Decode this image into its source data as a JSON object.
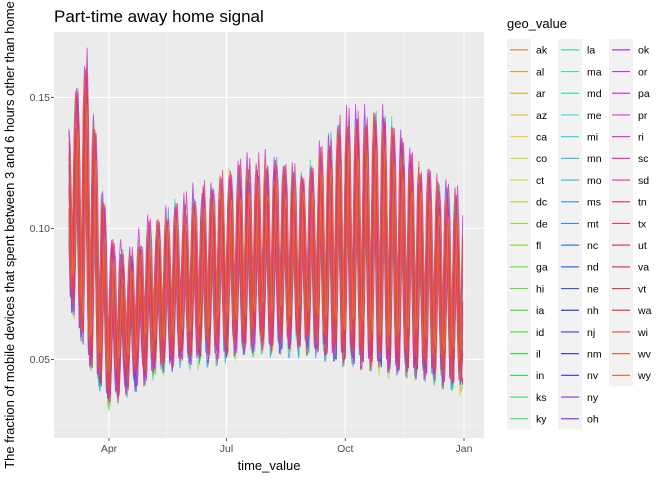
{
  "chart_data": {
    "type": "line",
    "title": "Part-time away home signal",
    "xlabel": "time_value",
    "ylabel": "The fraction of mobile devices that spent between 3 and 6 hours other than home",
    "x_ticks": [
      "Apr",
      "Jul",
      "Oct",
      "Jan"
    ],
    "y_ticks": [
      0.05,
      0.1,
      0.15
    ],
    "y_tick_labels": [
      "0.05",
      "0.10",
      "0.15"
    ],
    "ylim": [
      0.02,
      0.175
    ],
    "x_range": [
      "2020-03-01",
      "2021-01-01"
    ],
    "grid": true,
    "legend": {
      "title": "geo_value",
      "position": "right",
      "entries": [
        "ak",
        "al",
        "ar",
        "az",
        "ca",
        "co",
        "ct",
        "dc",
        "de",
        "fl",
        "ga",
        "hi",
        "ia",
        "id",
        "il",
        "in",
        "ks",
        "ky",
        "la",
        "ma",
        "md",
        "me",
        "mi",
        "mn",
        "mo",
        "ms",
        "mt",
        "nc",
        "nd",
        "ne",
        "nh",
        "nj",
        "nm",
        "nv",
        "ny",
        "oh",
        "ok",
        "or",
        "pa",
        "pr",
        "ri",
        "sc",
        "sd",
        "tn",
        "tx",
        "ut",
        "va",
        "vt",
        "wa",
        "wi",
        "wv",
        "wy"
      ]
    },
    "series_profile": {
      "x": [
        "2020-03-01",
        "2020-03-15",
        "2020-04-01",
        "2020-04-15",
        "2020-05-01",
        "2020-06-01",
        "2020-07-01",
        "2020-08-01",
        "2020-09-01",
        "2020-10-01",
        "2020-11-01",
        "2020-12-01",
        "2021-01-01"
      ],
      "weekly_peak": [
        0.13,
        0.15,
        0.085,
        0.08,
        0.09,
        0.1,
        0.11,
        0.115,
        0.11,
        0.13,
        0.13,
        0.11,
        0.1
      ],
      "weekly_low": [
        0.08,
        0.055,
        0.04,
        0.045,
        0.05,
        0.055,
        0.058,
        0.06,
        0.06,
        0.055,
        0.052,
        0.05,
        0.045
      ]
    }
  }
}
